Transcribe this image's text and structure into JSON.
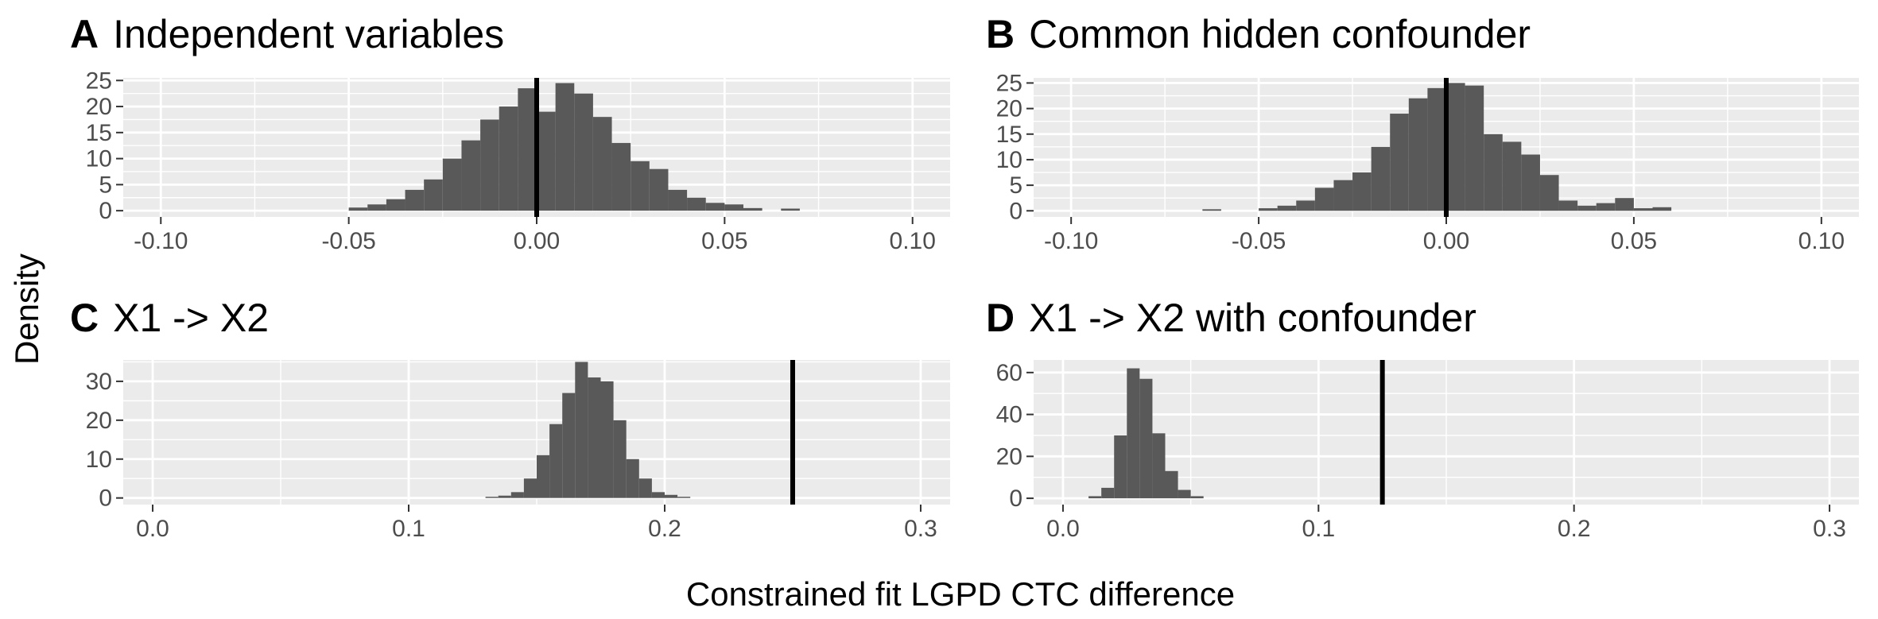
{
  "figure": {
    "ylabel": "Density",
    "xlabel": "Constrained fit LGPD CTC difference"
  },
  "colors": {
    "panel_bg": "#ebebeb",
    "grid_major": "#ffffff",
    "bar_fill": "#595959",
    "reference_line": "#000000",
    "tick_text": "#4d4d4d"
  },
  "chart_data": [
    {
      "type": "bar",
      "id": "A",
      "letter": "A",
      "title": "Independent variables",
      "xlim": [
        -0.11,
        0.11
      ],
      "ylim": [
        -1.2,
        25.5
      ],
      "xticks": [
        -0.1,
        -0.05,
        0.0,
        0.05,
        0.1
      ],
      "xtick_labels": [
        "-0.10",
        "-0.05",
        "0.00",
        "0.05",
        "0.10"
      ],
      "yticks": [
        0,
        5,
        10,
        15,
        20,
        25
      ],
      "ytick_labels": [
        "0",
        "5",
        "10",
        "15",
        "20",
        "25"
      ],
      "bin_start": -0.05,
      "bin_width": 0.005,
      "values": [
        0.6,
        1.2,
        2.2,
        4.0,
        6.0,
        10.0,
        13.5,
        17.5,
        20.0,
        23.5,
        19.0,
        24.5,
        22.5,
        18.0,
        13.0,
        9.5,
        8.0,
        4.0,
        2.5,
        1.5,
        1.2,
        0.5,
        0,
        0.4
      ],
      "vline": 0.0
    },
    {
      "type": "bar",
      "id": "B",
      "letter": "B",
      "title": "Common hidden confounder",
      "xlim": [
        -0.11,
        0.11
      ],
      "ylim": [
        -1.2,
        26.0
      ],
      "xticks": [
        -0.1,
        -0.05,
        0.0,
        0.05,
        0.1
      ],
      "xtick_labels": [
        "-0.10",
        "-0.05",
        "0.00",
        "0.05",
        "0.10"
      ],
      "yticks": [
        0,
        5,
        10,
        15,
        20,
        25
      ],
      "ytick_labels": [
        "0",
        "5",
        "10",
        "15",
        "20",
        "25"
      ],
      "bin_start": -0.065,
      "bin_width": 0.005,
      "values": [
        0.3,
        0,
        0,
        0.5,
        1.0,
        2.0,
        4.5,
        6.0,
        7.5,
        12.5,
        19.0,
        22.0,
        24.0,
        25.0,
        24.5,
        15.0,
        13.5,
        11.0,
        7.0,
        2.0,
        1.0,
        1.5,
        2.5,
        0.5,
        0.7
      ],
      "vline": 0.0
    },
    {
      "type": "bar",
      "id": "C",
      "letter": "C",
      "title": "X1 -> X2",
      "xlim": [
        -0.0115,
        0.3115
      ],
      "ylim": [
        -1.7,
        35.5
      ],
      "xticks": [
        0.0,
        0.1,
        0.2,
        0.3
      ],
      "xtick_labels": [
        "0.0",
        "0.1",
        "0.2",
        "0.3"
      ],
      "yticks": [
        0,
        10,
        20,
        30
      ],
      "ytick_labels": [
        "0",
        "10",
        "20",
        "30"
      ],
      "bin_start": 0.13,
      "bin_width": 0.005,
      "values": [
        0.3,
        0.6,
        1.5,
        5.0,
        11.0,
        19.0,
        27.0,
        35.0,
        31.0,
        30.0,
        20.0,
        10.0,
        5.0,
        1.5,
        0.8,
        0.3
      ],
      "vline": 0.25
    },
    {
      "type": "bar",
      "id": "D",
      "letter": "D",
      "title": "X1 -> X2 with confounder",
      "xlim": [
        -0.0115,
        0.3115
      ],
      "ylim": [
        -3.0,
        66.0
      ],
      "xticks": [
        0.0,
        0.1,
        0.2,
        0.3
      ],
      "xtick_labels": [
        "0.0",
        "0.1",
        "0.2",
        "0.3"
      ],
      "yticks": [
        0,
        20,
        40,
        60
      ],
      "ytick_labels": [
        "0",
        "20",
        "40",
        "60"
      ],
      "bin_start": 0.01,
      "bin_width": 0.005,
      "values": [
        1.0,
        5.0,
        30.0,
        62.0,
        57.0,
        31.0,
        13.0,
        4.0,
        1.0
      ],
      "vline": 0.125
    }
  ]
}
